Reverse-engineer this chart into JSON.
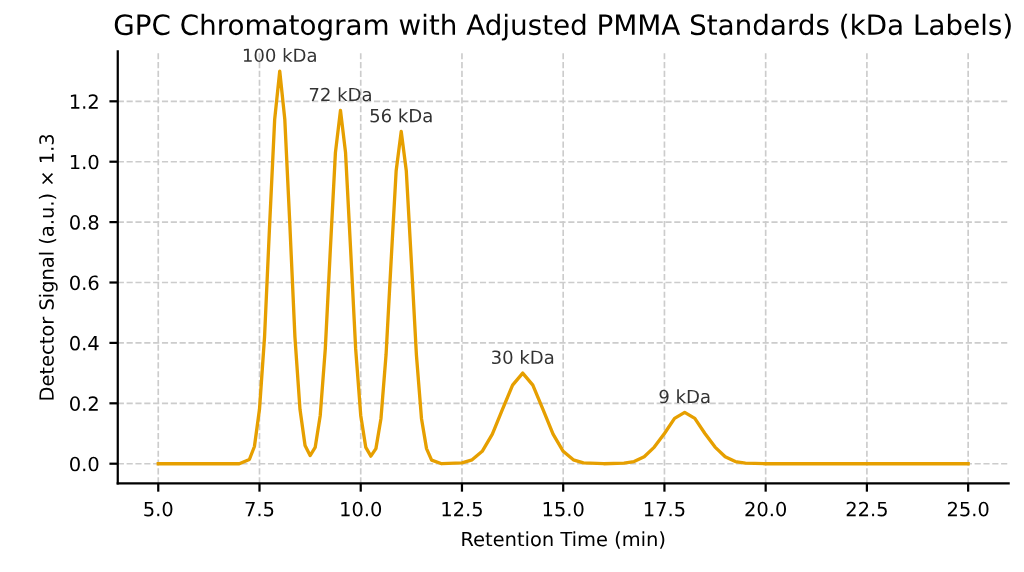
{
  "chart_data": {
    "type": "line",
    "title": "GPC Chromatogram with Adjusted PMMA Standards (kDa Labels)",
    "xlabel": "Retention Time (min)",
    "ylabel": "Detector Signal (a.u.) × 1.3",
    "x": [
      5.0,
      6.5,
      7.0,
      7.25,
      7.375,
      7.5,
      7.625,
      7.75,
      7.875,
      8.0,
      8.125,
      8.25,
      8.375,
      8.5,
      8.625,
      8.75,
      8.875,
      9.0,
      9.125,
      9.25,
      9.375,
      9.5,
      9.625,
      9.75,
      9.875,
      10.0,
      10.125,
      10.25,
      10.375,
      10.5,
      10.625,
      10.75,
      10.875,
      11.0,
      11.125,
      11.25,
      11.375,
      11.5,
      11.625,
      11.75,
      12.0,
      12.5,
      12.75,
      13.0,
      13.25,
      13.5,
      13.75,
      14.0,
      14.25,
      14.5,
      14.75,
      15.0,
      15.25,
      15.5,
      16.0,
      16.5,
      16.75,
      17.0,
      17.25,
      17.5,
      17.75,
      18.0,
      18.25,
      18.5,
      18.75,
      19.0,
      19.25,
      19.5,
      20.0,
      25.0
    ],
    "series": [
      {
        "color": "#e69f00",
        "values": [
          0,
          0,
          0,
          0.014,
          0.057,
          0.18,
          0.42,
          0.79,
          1.14,
          1.3,
          1.14,
          0.79,
          0.42,
          0.18,
          0.06,
          0.027,
          0.054,
          0.16,
          0.38,
          0.71,
          1.03,
          1.17,
          1.03,
          0.71,
          0.38,
          0.16,
          0.054,
          0.025,
          0.05,
          0.15,
          0.36,
          0.67,
          0.97,
          1.1,
          0.97,
          0.67,
          0.36,
          0.15,
          0.05,
          0.012,
          0,
          0.003,
          0.013,
          0.041,
          0.098,
          0.18,
          0.26,
          0.3,
          0.26,
          0.18,
          0.098,
          0.041,
          0.013,
          0.003,
          0,
          0.002,
          0.007,
          0.023,
          0.055,
          0.1,
          0.15,
          0.17,
          0.15,
          0.1,
          0.055,
          0.023,
          0.007,
          0.002,
          0,
          0
        ]
      }
    ],
    "annotations": [
      {
        "text": "100 kDa",
        "x": 8,
        "y": 1.3
      },
      {
        "text": "72 kDa",
        "x": 9.5,
        "y": 1.17
      },
      {
        "text": "56 kDa",
        "x": 11,
        "y": 1.1
      },
      {
        "text": "30 kDa",
        "x": 14,
        "y": 0.3
      },
      {
        "text": "9 kDa",
        "x": 18,
        "y": 0.17
      }
    ],
    "xlim": [
      4.0,
      26.0
    ],
    "xticks": [
      {
        "value": 5,
        "label": "5.0"
      },
      {
        "value": 7.5,
        "label": "7.5"
      },
      {
        "value": 10,
        "label": "10.0"
      },
      {
        "value": 12.5,
        "label": "12.5"
      },
      {
        "value": 15,
        "label": "15.0"
      },
      {
        "value": 17.5,
        "label": "17.5"
      },
      {
        "value": 20,
        "label": "20.0"
      },
      {
        "value": 22.5,
        "label": "22.5"
      },
      {
        "value": 25,
        "label": "25.0"
      }
    ],
    "ylim": [
      -0.065,
      1.365
    ],
    "yticks": [
      {
        "value": 0,
        "label": "0.0"
      },
      {
        "value": 0.2,
        "label": "0.2"
      },
      {
        "value": 0.4,
        "label": "0.4"
      },
      {
        "value": 0.6,
        "label": "0.6"
      },
      {
        "value": 0.8,
        "label": "0.8"
      },
      {
        "value": 1.0,
        "label": "1.0"
      },
      {
        "value": 1.2,
        "label": "1.2"
      }
    ],
    "grid": true,
    "line_style": "solid"
  }
}
